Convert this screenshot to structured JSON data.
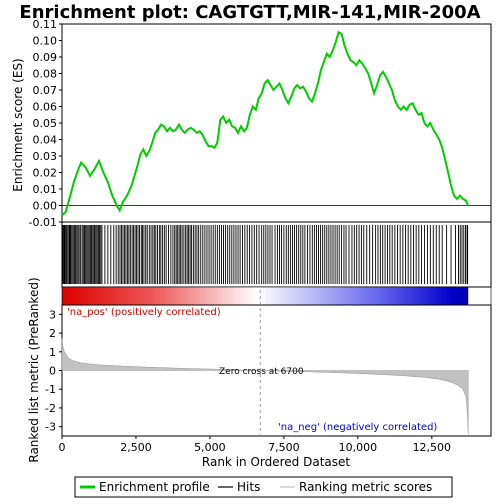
{
  "chart_data": {
    "type": "line",
    "title": "Enrichment plot: CAGTGTT,MIR-141,MIR-200A",
    "top_panel": {
      "ylabel": "Enrichment score (ES)",
      "ylim": [
        -0.01,
        0.11
      ],
      "yticks": [
        "-0.01",
        "0.00",
        "0.01",
        "0.02",
        "0.03",
        "0.04",
        "0.05",
        "0.06",
        "0.07",
        "0.08",
        "0.09",
        "0.10",
        "0.11"
      ],
      "series": [
        {
          "name": "Enrichment profile",
          "color": "#00cc00",
          "x": [
            0,
            120,
            250,
            400,
            550,
            650,
            800,
            950,
            1100,
            1250,
            1400,
            1550,
            1700,
            1850,
            1950,
            2050,
            2200,
            2350,
            2450,
            2550,
            2650,
            2750,
            2850,
            2950,
            3050,
            3150,
            3250,
            3350,
            3450,
            3550,
            3650,
            3750,
            3850,
            3950,
            4050,
            4150,
            4250,
            4350,
            4450,
            4550,
            4650,
            4750,
            4850,
            4950,
            5050,
            5150,
            5250,
            5350,
            5450,
            5550,
            5650,
            5750,
            5850,
            5950,
            6050,
            6150,
            6250,
            6350,
            6450,
            6550,
            6650,
            6750,
            6850,
            6950,
            7050,
            7150,
            7250,
            7350,
            7450,
            7550,
            7650,
            7750,
            7850,
            7950,
            8050,
            8150,
            8250,
            8350,
            8450,
            8550,
            8650,
            8750,
            8850,
            8950,
            9050,
            9150,
            9250,
            9350,
            9450,
            9550,
            9650,
            9750,
            9850,
            9950,
            10050,
            10150,
            10250,
            10350,
            10450,
            10550,
            10650,
            10750,
            10850,
            10950,
            11050,
            11150,
            11250,
            11350,
            11450,
            11550,
            11650,
            11750,
            11850,
            11950,
            12050,
            12150,
            12250,
            12350,
            12450,
            12550,
            12650,
            12750,
            12850,
            12950,
            13050,
            13150,
            13250,
            13350,
            13450,
            13550,
            13650,
            13720
          ],
          "y": [
            -0.006,
            -0.004,
            0.004,
            0.014,
            0.022,
            0.026,
            0.023,
            0.018,
            0.022,
            0.027,
            0.02,
            0.014,
            0.006,
            0.0,
            -0.003,
            0.002,
            0.006,
            0.012,
            0.018,
            0.024,
            0.031,
            0.034,
            0.03,
            0.033,
            0.038,
            0.044,
            0.046,
            0.049,
            0.048,
            0.045,
            0.047,
            0.045,
            0.046,
            0.049,
            0.046,
            0.044,
            0.046,
            0.047,
            0.046,
            0.044,
            0.045,
            0.043,
            0.039,
            0.036,
            0.036,
            0.035,
            0.038,
            0.052,
            0.054,
            0.05,
            0.052,
            0.048,
            0.047,
            0.044,
            0.048,
            0.045,
            0.047,
            0.055,
            0.06,
            0.058,
            0.065,
            0.068,
            0.074,
            0.076,
            0.073,
            0.07,
            0.072,
            0.074,
            0.07,
            0.065,
            0.062,
            0.066,
            0.071,
            0.073,
            0.071,
            0.072,
            0.069,
            0.065,
            0.063,
            0.068,
            0.074,
            0.082,
            0.087,
            0.092,
            0.09,
            0.094,
            0.099,
            0.105,
            0.104,
            0.097,
            0.092,
            0.088,
            0.087,
            0.085,
            0.088,
            0.086,
            0.083,
            0.08,
            0.074,
            0.068,
            0.073,
            0.079,
            0.081,
            0.078,
            0.074,
            0.07,
            0.064,
            0.06,
            0.058,
            0.06,
            0.058,
            0.061,
            0.062,
            0.058,
            0.055,
            0.056,
            0.05,
            0.048,
            0.05,
            0.046,
            0.043,
            0.04,
            0.035,
            0.028,
            0.02,
            0.012,
            0.006,
            0.004,
            0.006,
            0.004,
            0.003,
            0.0
          ]
        }
      ]
    },
    "hits": {
      "name": "Hits",
      "color": "#000000",
      "positions": [
        15,
        40,
        70,
        95,
        130,
        160,
        200,
        240,
        270,
        300,
        340,
        380,
        420,
        460,
        500,
        540,
        580,
        630,
        680,
        720,
        760,
        800,
        840,
        880,
        920,
        960,
        1000,
        1040,
        1080,
        1110,
        1150,
        1190,
        1230,
        1270,
        1310,
        1350,
        1450,
        1550,
        1650,
        1750,
        1830,
        1900,
        1960,
        2010,
        2060,
        2110,
        2160,
        2210,
        2260,
        2310,
        2370,
        2420,
        2470,
        2520,
        2570,
        2620,
        2680,
        2720,
        2770,
        2830,
        2880,
        2950,
        3010,
        3070,
        3120,
        3170,
        3230,
        3290,
        3340,
        3400,
        3460,
        3520,
        3600,
        3680,
        3750,
        3810,
        3860,
        3910,
        3960,
        4010,
        4060,
        4120,
        4180,
        4230,
        4280,
        4330,
        4380,
        4440,
        4500,
        4560,
        4620,
        4690,
        4760,
        4830,
        4900,
        4970,
        5040,
        5110,
        5180,
        5250,
        5320,
        5390,
        5460,
        5530,
        5600,
        5670,
        5740,
        5810,
        5880,
        5950,
        6020,
        6100,
        6180,
        6260,
        6340,
        6420,
        6500,
        6580,
        6660,
        6750,
        6820,
        6890,
        6960,
        7030,
        7100,
        7200,
        7280,
        7350,
        7420,
        7500,
        7580,
        7650,
        7720,
        7790,
        7860,
        7930,
        8000,
        8070,
        8140,
        8210,
        8300,
        8380,
        8460,
        8530,
        8600,
        8670,
        8740,
        8810,
        8880,
        8950,
        9020,
        9090,
        9160,
        9230,
        9300,
        9370,
        9450,
        9530,
        9600,
        9700,
        9800,
        9880,
        9960,
        10040,
        10120,
        10200,
        10300,
        10400,
        10500,
        10600,
        10680,
        10760,
        10840,
        10920,
        11000,
        11080,
        11160,
        11250,
        11340,
        11430,
        11520,
        11610,
        11700,
        11790,
        11880,
        11970,
        12060,
        12150,
        12250,
        12350,
        12450,
        12550,
        12650,
        12750,
        12850,
        13000,
        13150,
        13300,
        13400,
        13460,
        13520,
        13580,
        13640,
        13690,
        13710
      ]
    },
    "bottom_panel": {
      "ylabel": "Ranked list metric (PreRanked)",
      "xlabel": "Rank in Ordered Dataset",
      "ylim": [
        -3.5,
        3.5
      ],
      "yticks": [
        "-3",
        "-2",
        "-1",
        "0",
        "1",
        "2",
        "3"
      ],
      "xlim": [
        0,
        14500
      ],
      "xticks": [
        "0",
        "2,500",
        "5,000",
        "7,500",
        "10,000",
        "12,500"
      ],
      "xtick_values": [
        0,
        2500,
        5000,
        7500,
        10000,
        12500
      ],
      "metric": {
        "name": "Ranking metric scores",
        "color": "#c0c0c0",
        "x": [
          0,
          30,
          80,
          150,
          250,
          400,
          600,
          900,
          1300,
          2000,
          3000,
          4000,
          5000,
          6000,
          6700,
          7500,
          8500,
          9500,
          10500,
          11500,
          12200,
          12700,
          13000,
          13200,
          13400,
          13550,
          13650,
          13700,
          13730
        ],
        "y": [
          1.7,
          1.3,
          1.0,
          0.8,
          0.62,
          0.5,
          0.42,
          0.35,
          0.3,
          0.24,
          0.17,
          0.12,
          0.08,
          0.03,
          0.0,
          -0.04,
          -0.08,
          -0.13,
          -0.19,
          -0.27,
          -0.36,
          -0.45,
          -0.55,
          -0.65,
          -0.8,
          -1.0,
          -1.4,
          -2.2,
          -3.4
        ]
      },
      "zero_cross_label": "Zero cross at 6700",
      "zero_cross": 6700,
      "pos_label": "'na_pos' (positively correlated)",
      "neg_label": "'na_neg' (negatively correlated)"
    },
    "n_genes": 13730,
    "legend": {
      "placement": "bottom",
      "entries": [
        {
          "label": "Enrichment profile",
          "color": "#00cc00"
        },
        {
          "label": "Hits",
          "color": "#000000"
        },
        {
          "label": "Ranking metric scores",
          "color": "#c0c0c0"
        }
      ]
    }
  }
}
